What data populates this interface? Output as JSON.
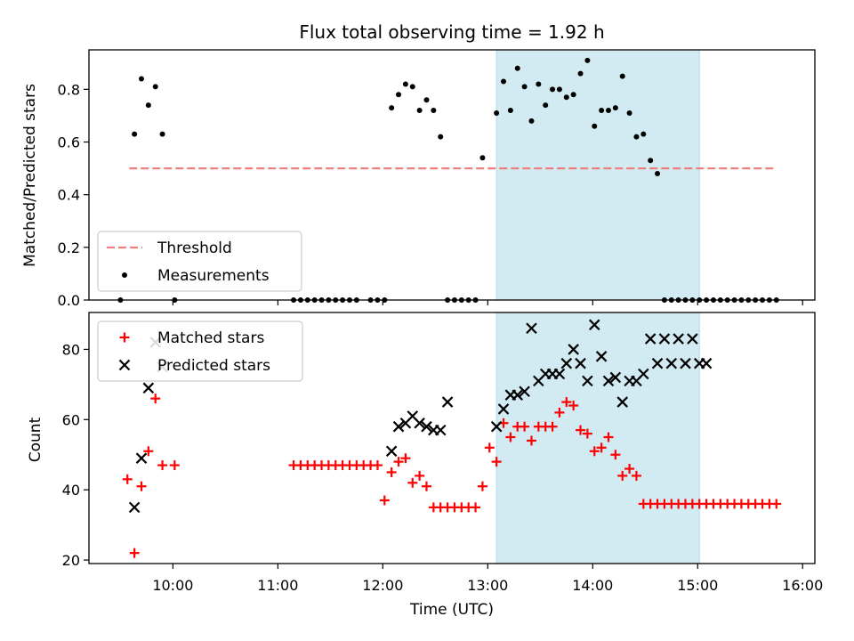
{
  "chart_data": [
    {
      "type": "scatter",
      "title": "Flux total observing time = 1.92 h",
      "xlabel": "",
      "ylabel": "Matched/Predicted stars",
      "ylim": [
        0,
        0.95
      ],
      "yticks": [
        0.0,
        0.2,
        0.4,
        0.6,
        0.8
      ],
      "ytick_labels": [
        "0.0",
        "0.2",
        "0.4",
        "0.6",
        "0.8"
      ],
      "shaded_span": {
        "x_start": "13:05",
        "x_end": "15:01",
        "color": "#add8e6"
      },
      "legend": {
        "placement": "lower-left",
        "entries": [
          "Threshold",
          "Measurements"
        ]
      },
      "series": [
        {
          "name": "Threshold",
          "kind": "dashed-line",
          "color": "#f08080",
          "x": [
            "09:35",
            "15:45"
          ],
          "y": [
            0.5,
            0.5
          ]
        },
        {
          "name": "Measurements",
          "kind": "dots",
          "color": "#000000",
          "x": [
            "09:30",
            "09:38",
            "09:42",
            "09:46",
            "09:50",
            "09:54",
            "10:01",
            "11:09",
            "11:13",
            "11:17",
            "11:21",
            "11:25",
            "11:29",
            "11:33",
            "11:37",
            "11:41",
            "11:45",
            "11:53",
            "11:57",
            "12:01",
            "12:05",
            "12:09",
            "12:13",
            "12:17",
            "12:21",
            "12:25",
            "12:29",
            "12:33",
            "12:37",
            "12:41",
            "12:45",
            "12:49",
            "12:53",
            "12:57",
            "13:05",
            "13:09",
            "13:13",
            "13:17",
            "13:21",
            "13:25",
            "13:29",
            "13:33",
            "13:37",
            "13:41",
            "13:45",
            "13:49",
            "13:53",
            "13:57",
            "14:01",
            "14:05",
            "14:09",
            "14:13",
            "14:17",
            "14:21",
            "14:25",
            "14:29",
            "14:33",
            "14:37",
            "14:41",
            "14:45",
            "14:49",
            "14:53",
            "14:57",
            "15:01",
            "15:05",
            "15:09",
            "15:13",
            "15:17",
            "15:21",
            "15:25",
            "15:29",
            "15:33",
            "15:37",
            "15:41",
            "15:45"
          ],
          "y": [
            0.0,
            0.63,
            0.84,
            0.74,
            0.81,
            0.63,
            0.0,
            0.0,
            0.0,
            0.0,
            0.0,
            0.0,
            0.0,
            0.0,
            0.0,
            0.0,
            0.0,
            0.0,
            0.0,
            0.0,
            0.73,
            0.78,
            0.82,
            0.81,
            0.72,
            0.76,
            0.72,
            0.62,
            0.0,
            0.0,
            0.0,
            0.0,
            0.0,
            0.54,
            0.71,
            0.83,
            0.72,
            0.88,
            0.81,
            0.68,
            0.82,
            0.74,
            0.8,
            0.8,
            0.77,
            0.78,
            0.86,
            0.91,
            0.66,
            0.72,
            0.72,
            0.73,
            0.85,
            0.71,
            0.62,
            0.63,
            0.53,
            0.48,
            0.0,
            0.0,
            0.0,
            0.0,
            0.0,
            0.0,
            0.0,
            0.0,
            0.0,
            0.0,
            0.0,
            0.0,
            0.0,
            0.0,
            0.0,
            0.0,
            0.0
          ]
        }
      ]
    },
    {
      "type": "scatter",
      "title": "",
      "xlabel": "Time (UTC)",
      "ylabel": "Count",
      "ylim": [
        19,
        90.5
      ],
      "yticks": [
        20,
        40,
        60,
        80
      ],
      "ytick_labels": [
        "20",
        "40",
        "60",
        "80"
      ],
      "xlim": [
        "09:12",
        "16:07"
      ],
      "xticks": [
        "10:00",
        "11:00",
        "12:00",
        "13:00",
        "14:00",
        "15:00",
        "16:00"
      ],
      "shaded_span": {
        "x_start": "13:05",
        "x_end": "15:01",
        "color": "#add8e6"
      },
      "legend": {
        "placement": "upper-left",
        "entries": [
          "Matched stars",
          "Predicted stars"
        ]
      },
      "series": [
        {
          "name": "Matched stars",
          "kind": "plus",
          "color": "#ff0000",
          "x": [
            "09:34",
            "09:38",
            "09:42",
            "09:46",
            "09:50",
            "09:54",
            "10:01",
            "11:09",
            "11:13",
            "11:17",
            "11:21",
            "11:25",
            "11:29",
            "11:33",
            "11:37",
            "11:41",
            "11:45",
            "11:49",
            "11:53",
            "11:57",
            "12:01",
            "12:05",
            "12:09",
            "12:13",
            "12:17",
            "12:21",
            "12:25",
            "12:29",
            "12:33",
            "12:37",
            "12:41",
            "12:45",
            "12:49",
            "12:53",
            "12:57",
            "13:01",
            "13:05",
            "13:09",
            "13:13",
            "13:17",
            "13:21",
            "13:25",
            "13:29",
            "13:33",
            "13:37",
            "13:41",
            "13:45",
            "13:49",
            "13:53",
            "13:57",
            "14:01",
            "14:05",
            "14:09",
            "14:13",
            "14:17",
            "14:21",
            "14:25",
            "14:29",
            "14:33",
            "14:37",
            "14:41",
            "14:45",
            "14:49",
            "14:53",
            "14:57",
            "15:01",
            "15:05",
            "15:09",
            "15:13",
            "15:17",
            "15:21",
            "15:25",
            "15:29",
            "15:33",
            "15:37",
            "15:41",
            "15:45"
          ],
          "y": [
            43,
            22,
            41,
            51,
            66,
            47,
            47,
            47,
            47,
            47,
            47,
            47,
            47,
            47,
            47,
            47,
            47,
            47,
            47,
            47,
            37,
            45,
            48,
            49,
            42,
            44,
            41,
            35,
            35,
            35,
            35,
            35,
            35,
            35,
            41,
            52,
            48,
            59,
            55,
            58,
            58,
            54,
            58,
            58,
            58,
            62,
            65,
            64,
            57,
            56,
            51,
            52,
            55,
            50,
            44,
            46,
            44,
            36,
            36,
            36,
            36,
            36,
            36,
            36,
            36,
            36,
            36,
            36,
            36,
            36,
            36,
            36,
            36,
            36,
            36,
            36,
            36
          ]
        },
        {
          "name": "Predicted stars",
          "kind": "x",
          "color": "#000000",
          "x": [
            "09:38",
            "09:42",
            "09:46",
            "09:50",
            "09:54",
            "12:05",
            "12:09",
            "12:13",
            "12:17",
            "12:21",
            "12:25",
            "12:29",
            "12:33",
            "12:37",
            "13:05",
            "13:09",
            "13:13",
            "13:17",
            "13:21",
            "13:25",
            "13:29",
            "13:33",
            "13:37",
            "13:41",
            "13:45",
            "13:49",
            "13:53",
            "13:57",
            "14:01",
            "14:05",
            "14:09",
            "14:13",
            "14:17",
            "14:21",
            "14:25",
            "14:29",
            "14:33",
            "14:37",
            "14:41",
            "14:45",
            "14:49",
            "14:53",
            "14:57",
            "15:01",
            "15:05"
          ],
          "y": [
            35,
            49,
            69,
            82,
            75,
            51,
            58,
            59,
            61,
            59,
            58,
            57,
            57,
            65,
            58,
            63,
            67,
            67,
            68,
            86,
            71,
            73,
            73,
            73,
            76,
            80,
            76,
            71,
            87,
            78,
            71,
            72,
            65,
            71,
            71,
            73,
            83,
            76,
            83,
            76,
            83,
            76,
            83,
            76,
            76
          ]
        }
      ]
    }
  ]
}
